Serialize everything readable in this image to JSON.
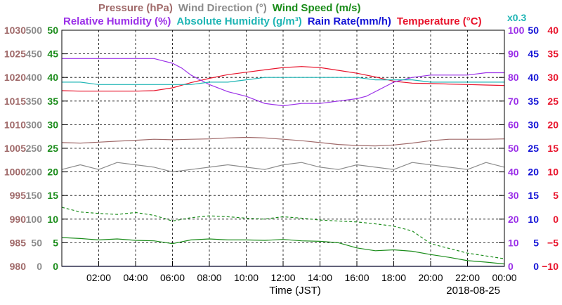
{
  "chart_data": {
    "type": "line",
    "xlabel": "Time (JST)",
    "date": "2018-08-25",
    "xlim": [
      0,
      24
    ],
    "x_ticks": [
      "02:00",
      "04:00",
      "06:00",
      "08:00",
      "10:00",
      "12:00",
      "14:00",
      "16:00",
      "18:00",
      "20:00",
      "22:00",
      "00:00"
    ],
    "grid": true,
    "legend": {
      "row1": [
        {
          "label": "Pressure (hPa)",
          "color": "#a06a6a"
        },
        {
          "label": "Wind Direction (°)",
          "color": "#8c8c8c"
        },
        {
          "label": "Wind Speed (m/s)",
          "color": "#1a8c1a"
        }
      ],
      "row2": [
        {
          "label": "Relative Humidity (%)",
          "color": "#9b30e8"
        },
        {
          "label": "Absolute Humidity (g/m³)",
          "color": "#1fb5b5"
        },
        {
          "label": "Rain Rate(mm/h)",
          "color": "#1414d6"
        },
        {
          "label": "Temperature (°C)",
          "color": "#e8142c"
        }
      ],
      "note": "x0.3",
      "note_color": "#1fb5b5"
    },
    "axes": [
      {
        "name": "Pressure",
        "unit": "hPa",
        "side": "left",
        "color": "#a06a6a",
        "min": 980,
        "max": 1030,
        "ticks": [
          980,
          985,
          990,
          995,
          1000,
          1005,
          1010,
          1015,
          1020,
          1025,
          1030
        ]
      },
      {
        "name": "Wind Direction",
        "unit": "°",
        "side": "left",
        "color": "#8c8c8c",
        "min": 0,
        "max": 500,
        "ticks": [
          0,
          50,
          100,
          150,
          200,
          250,
          300,
          350,
          400,
          450,
          500
        ]
      },
      {
        "name": "Wind Speed",
        "unit": "m/s",
        "side": "left",
        "color": "#1a8c1a",
        "min": 0,
        "max": 50,
        "ticks": [
          0,
          5,
          10,
          15,
          20,
          25,
          30,
          35,
          40,
          45,
          50
        ]
      },
      {
        "name": "Relative Humidity",
        "unit": "%",
        "side": "right",
        "color": "#9b30e8",
        "min": 0,
        "max": 100,
        "ticks": [
          0,
          10,
          20,
          30,
          40,
          50,
          60,
          70,
          80,
          90,
          100
        ]
      },
      {
        "name": "Rain Rate",
        "unit": "mm/h",
        "side": "right",
        "color": "#1414d6",
        "min": 0,
        "max": 50,
        "ticks": [
          0,
          5,
          10,
          15,
          20,
          25,
          30,
          35,
          40,
          45,
          50
        ]
      },
      {
        "name": "Temperature",
        "unit": "°C",
        "side": "right",
        "color": "#e8142c",
        "min": -10,
        "max": 40,
        "ticks": [
          -10,
          -5,
          0,
          5,
          10,
          15,
          20,
          25,
          30,
          35,
          40
        ]
      }
    ],
    "series": [
      {
        "name": "Temperature",
        "unit": "°C",
        "color": "#e8142c",
        "style": "solid",
        "x": [
          0,
          1,
          2,
          3,
          4,
          5,
          6,
          7,
          8,
          9,
          10,
          11,
          12,
          13,
          14,
          15,
          16,
          17,
          18,
          19,
          20,
          21,
          22,
          23,
          24
        ],
        "y": [
          27.2,
          27.1,
          27.1,
          27.1,
          27.1,
          27.2,
          27.8,
          28.9,
          29.8,
          30.6,
          31.1,
          31.6,
          32.1,
          32.3,
          32.1,
          31.5,
          30.9,
          30.1,
          29.2,
          28.8,
          28.7,
          28.6,
          28.5,
          28.4,
          28.3
        ]
      },
      {
        "name": "Relative Humidity",
        "unit": "%",
        "color": "#9b30e8",
        "style": "solid",
        "x": [
          0,
          1,
          2,
          3,
          4,
          5,
          5.5,
          6,
          6.5,
          7,
          7.5,
          8,
          9,
          10,
          11,
          12,
          13,
          14,
          15,
          16,
          16.5,
          17,
          17.5,
          18,
          18.5,
          19,
          20,
          21,
          22,
          23,
          24
        ],
        "y": [
          88,
          88,
          88,
          88,
          88,
          88,
          87,
          86,
          84,
          81,
          79,
          77,
          74,
          72,
          69,
          68,
          69,
          69,
          70,
          71,
          72,
          74,
          76,
          78,
          79,
          80,
          81,
          81,
          81,
          82,
          82
        ]
      },
      {
        "name": "Absolute Humidity",
        "unit": "g/m³ (x0.3)",
        "color": "#1fb5b5",
        "style": "solid",
        "x": [
          0,
          1,
          2,
          3,
          4,
          5,
          6,
          7,
          8,
          9,
          10,
          11,
          12,
          13,
          14,
          15,
          16,
          17,
          18,
          19,
          20,
          21,
          22,
          23,
          24
        ],
        "y": [
          78,
          78,
          77,
          77,
          77,
          77,
          77,
          77,
          78,
          78,
          79,
          80,
          80,
          80,
          80,
          80,
          80,
          79,
          79,
          79,
          78,
          78,
          78,
          78,
          78
        ]
      },
      {
        "name": "Pressure",
        "unit": "hPa",
        "color": "#a06a6a",
        "style": "solid",
        "x": [
          0,
          1,
          2,
          3,
          4,
          5,
          6,
          7,
          8,
          9,
          10,
          11,
          12,
          13,
          14,
          15,
          16,
          17,
          18,
          19,
          20,
          21,
          22,
          23,
          24
        ],
        "y": [
          1006.2,
          1006.1,
          1006.3,
          1006.5,
          1006.7,
          1006.9,
          1006.8,
          1006.9,
          1007.0,
          1007.2,
          1007.3,
          1007.2,
          1006.9,
          1006.6,
          1006.2,
          1005.8,
          1005.6,
          1005.5,
          1005.7,
          1006.1,
          1006.6,
          1006.9,
          1006.9,
          1006.9,
          1007.0
        ]
      },
      {
        "name": "Wind Direction",
        "unit": "°",
        "color": "#8c8c8c",
        "style": "solid",
        "x": [
          0,
          1,
          2,
          3,
          4,
          5,
          6,
          7,
          8,
          9,
          10,
          11,
          12,
          13,
          14,
          15,
          16,
          17,
          18,
          19,
          20,
          21,
          22,
          23,
          24
        ],
        "y": [
          205,
          215,
          205,
          220,
          215,
          210,
          200,
          205,
          210,
          215,
          210,
          205,
          215,
          220,
          210,
          205,
          215,
          210,
          205,
          220,
          215,
          210,
          205,
          220,
          210
        ]
      },
      {
        "name": "Wind Speed (max)",
        "unit": "m/s",
        "color": "#1a8c1a",
        "style": "dashed",
        "x": [
          0,
          1,
          2,
          3,
          4,
          5,
          6,
          7,
          8,
          9,
          10,
          11,
          12,
          13,
          14,
          15,
          16,
          17,
          18,
          19,
          20,
          21,
          22,
          23,
          24
        ],
        "y": [
          12.5,
          11.5,
          11.2,
          11.0,
          11.4,
          10.8,
          9.6,
          10.3,
          10.7,
          10.5,
          10.2,
          10.0,
          10.5,
          10.2,
          9.8,
          9.6,
          9.4,
          9.0,
          8.5,
          7.5,
          4.8,
          3.8,
          2.8,
          2.2,
          1.6
        ]
      },
      {
        "name": "Wind Speed",
        "unit": "m/s",
        "color": "#1a8c1a",
        "style": "solid",
        "x": [
          0,
          1,
          2,
          3,
          4,
          5,
          6,
          7,
          8,
          9,
          10,
          11,
          12,
          13,
          14,
          15,
          16,
          17,
          18,
          19,
          20,
          21,
          22,
          23,
          24
        ],
        "y": [
          6.1,
          5.9,
          5.6,
          5.8,
          5.5,
          5.4,
          4.8,
          5.6,
          5.8,
          5.6,
          5.6,
          5.5,
          5.7,
          5.4,
          5.3,
          5.0,
          3.9,
          3.3,
          3.5,
          3.2,
          2.5,
          1.9,
          1.2,
          0.9,
          0.5
        ]
      },
      {
        "name": "Rain Rate",
        "unit": "mm/h",
        "color": "#1414d6",
        "style": "solid",
        "x": [
          0,
          24
        ],
        "y": [
          0,
          0
        ]
      }
    ]
  }
}
